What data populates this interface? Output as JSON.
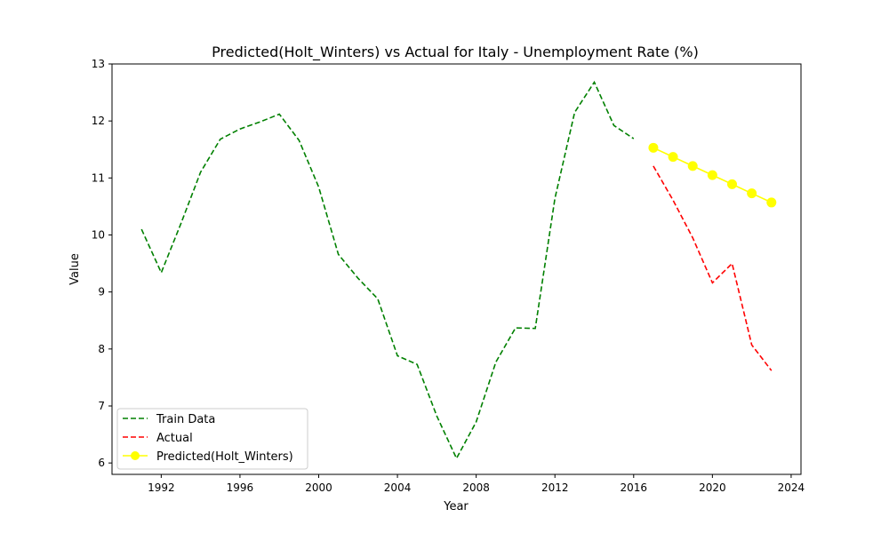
{
  "chart_data": {
    "type": "line",
    "title": "Predicted(Holt_Winters) vs Actual for Italy - Unemployment Rate (%)",
    "xlabel": "Year",
    "ylabel": "Value",
    "xlim": [
      1989.5,
      2024.5
    ],
    "ylim": [
      5.8,
      13.0
    ],
    "xticks": [
      1992,
      1996,
      2000,
      2004,
      2008,
      2012,
      2016,
      2020,
      2024
    ],
    "yticks": [
      6,
      7,
      8,
      9,
      10,
      11,
      12,
      13
    ],
    "grid": false,
    "legend_position": "lower-left",
    "series": [
      {
        "name": "Train Data",
        "color": "#008000",
        "style": "dashed",
        "marker": "none",
        "x": [
          1991,
          1992,
          1993,
          1994,
          1995,
          1996,
          1997,
          1998,
          1999,
          2000,
          2001,
          2002,
          2003,
          2004,
          2005,
          2006,
          2007,
          2008,
          2009,
          2010,
          2011,
          2012,
          2013,
          2014,
          2015,
          2016
        ],
        "y": [
          10.1,
          9.34,
          10.2,
          11.1,
          11.68,
          11.86,
          11.98,
          12.12,
          11.66,
          10.84,
          9.66,
          9.24,
          8.88,
          7.88,
          7.73,
          6.82,
          6.08,
          6.72,
          7.77,
          8.37,
          8.36,
          10.64,
          12.15,
          12.68,
          11.92,
          11.69
        ]
      },
      {
        "name": "Actual",
        "color": "#ff0000",
        "style": "dashed",
        "marker": "none",
        "x": [
          2017,
          2018,
          2019,
          2020,
          2021,
          2022,
          2023
        ],
        "y": [
          11.21,
          10.61,
          9.95,
          9.16,
          9.5,
          8.07,
          7.62
        ]
      },
      {
        "name": "Predicted(Holt_Winters)",
        "color": "#ffff00",
        "style": "solid",
        "marker": "circle",
        "x": [
          2017,
          2018,
          2019,
          2020,
          2021,
          2022,
          2023
        ],
        "y": [
          11.53,
          11.37,
          11.21,
          11.05,
          10.89,
          10.73,
          10.57
        ]
      }
    ]
  }
}
